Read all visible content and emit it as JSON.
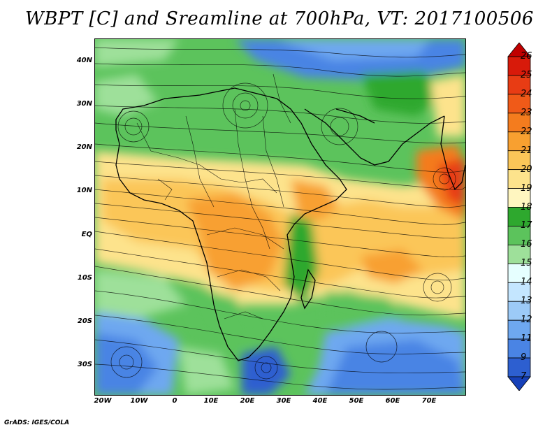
{
  "title": "WBPT [C] and Sreamline at 700hPa, VT: 2017100506",
  "credit": "GrADS: IGES/COLA",
  "lat_labels": [
    "40N",
    "30N",
    "20N",
    "10N",
    "EQ",
    "10S",
    "20S",
    "30S"
  ],
  "lon_labels": [
    "20W",
    "10W",
    "0",
    "10E",
    "20E",
    "30E",
    "40E",
    "50E",
    "60E",
    "70E"
  ],
  "colorbar": {
    "labels": [
      "26",
      "25",
      "24",
      "23",
      "22",
      "21",
      "20",
      "19",
      "18",
      "17",
      "16",
      "15",
      "14",
      "13",
      "12",
      "11",
      "9",
      "7"
    ],
    "colors": [
      "#c00000",
      "#d81a0a",
      "#e83c14",
      "#f05a18",
      "#f47c1e",
      "#f8a030",
      "#fbc658",
      "#fde38c",
      "#fff6c0",
      "#2ea82e",
      "#5cc35c",
      "#9ee09a",
      "#e6ffff",
      "#c4e6ff",
      "#9ccaf7",
      "#6ea8f0",
      "#4a84e4",
      "#2d5fd0",
      "#1640b8"
    ]
  }
}
